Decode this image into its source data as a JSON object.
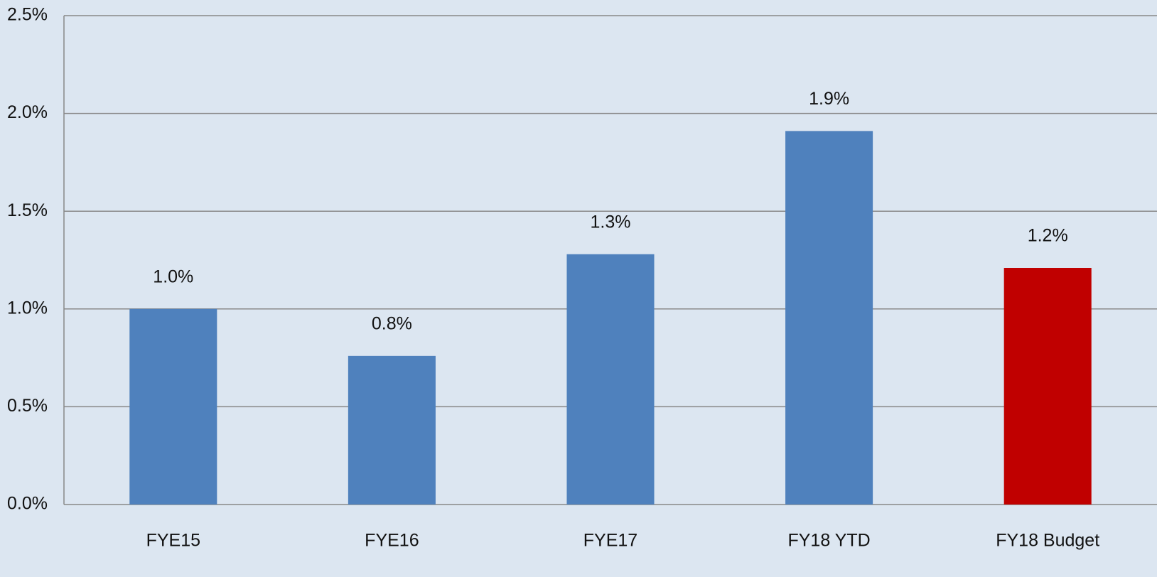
{
  "chart_data": {
    "type": "bar",
    "categories": [
      "FYE15",
      "FYE16",
      "FYE17",
      "FY18 YTD",
      "FY18 Budget"
    ],
    "values": [
      1.0,
      0.76,
      1.28,
      1.91,
      1.21
    ],
    "value_labels": [
      "1.0%",
      "0.8%",
      "1.3%",
      "1.9%",
      "1.2%"
    ],
    "colors": [
      "#4f81bd",
      "#4f81bd",
      "#4f81bd",
      "#4f81bd",
      "#c00000"
    ],
    "ylim": [
      0,
      2.5
    ],
    "yticks": [
      {
        "value": 0,
        "label": "0.0%"
      },
      {
        "value": 0.5,
        "label": "0.5%"
      },
      {
        "value": 1.0,
        "label": "1.0%"
      },
      {
        "value": 1.5,
        "label": "1.5%"
      },
      {
        "value": 2.0,
        "label": "2.0%"
      },
      {
        "value": 2.5,
        "label": "2.5%"
      }
    ],
    "grid": true
  }
}
